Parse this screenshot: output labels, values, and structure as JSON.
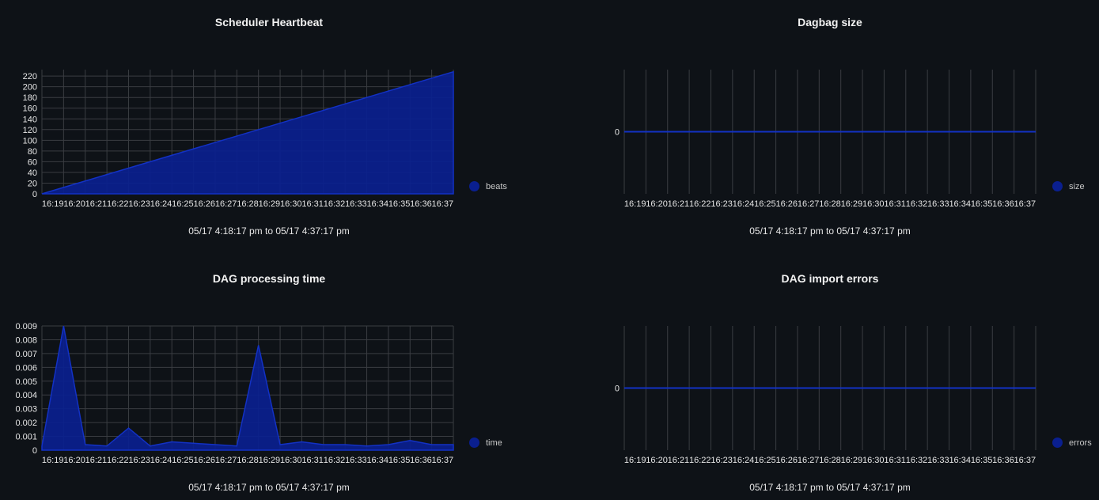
{
  "theme": {
    "background": "#0e1217",
    "series_color": "#0a1f8f",
    "series_line": "#1231c4",
    "grid": "#3a3d42",
    "text": "#e6e6e6"
  },
  "chart_data": [
    {
      "id": "scheduler-heartbeat",
      "type": "area",
      "title": "Scheduler Heartbeat",
      "subtitle": "05/17 4:18:17 pm to 05/17 4:37:17 pm",
      "legend": "beats",
      "legend_position": "right",
      "grid": "both",
      "x_ticks": [
        "16:19",
        "16:20",
        "16:21",
        "16:22",
        "16:23",
        "16:24",
        "16:25",
        "16:26",
        "16:27",
        "16:28",
        "16:29",
        "16:30",
        "16:31",
        "16:32",
        "16:33",
        "16:34",
        "16:35",
        "16:36",
        "16:37"
      ],
      "y_ticks": [
        0,
        20,
        40,
        60,
        80,
        100,
        120,
        140,
        160,
        180,
        200,
        220
      ],
      "ylim": [
        0,
        232
      ],
      "series": [
        {
          "name": "beats",
          "values": [
            0,
            12,
            24,
            36,
            48,
            60,
            72,
            84,
            96,
            108,
            120,
            132,
            144,
            156,
            168,
            180,
            192,
            204,
            216,
            228
          ]
        }
      ]
    },
    {
      "id": "dagbag-size",
      "type": "line",
      "title": "Dagbag size",
      "subtitle": "05/17 4:18:17 pm to 05/17 4:37:17 pm",
      "legend": "size",
      "legend_position": "right",
      "grid": "vertical",
      "x_ticks": [
        "16:19",
        "16:20",
        "16:21",
        "16:22",
        "16:23",
        "16:24",
        "16:25",
        "16:26",
        "16:27",
        "16:28",
        "16:29",
        "16:30",
        "16:31",
        "16:32",
        "16:33",
        "16:34",
        "16:35",
        "16:36",
        "16:37"
      ],
      "y_ticks": [
        0
      ],
      "ylim": [
        -1,
        1
      ],
      "series": [
        {
          "name": "size",
          "values": [
            0,
            0,
            0,
            0,
            0,
            0,
            0,
            0,
            0,
            0,
            0,
            0,
            0,
            0,
            0,
            0,
            0,
            0,
            0,
            0
          ]
        }
      ]
    },
    {
      "id": "dag-processing-time",
      "type": "area",
      "title": "DAG processing time",
      "subtitle": "05/17 4:18:17 pm to 05/17 4:37:17 pm",
      "legend": "time",
      "legend_position": "right",
      "grid": "both",
      "x_ticks": [
        "16:19",
        "16:20",
        "16:21",
        "16:22",
        "16:23",
        "16:24",
        "16:25",
        "16:26",
        "16:27",
        "16:28",
        "16:29",
        "16:30",
        "16:31",
        "16:32",
        "16:33",
        "16:34",
        "16:35",
        "16:36",
        "16:37"
      ],
      "y_ticks": [
        "0",
        "0.001",
        "0.002",
        "0.003",
        "0.004",
        "0.005",
        "0.006",
        "0.007",
        "0.008",
        "0.009"
      ],
      "ylim": [
        0,
        0.009
      ],
      "series": [
        {
          "name": "time",
          "values": [
            0.0003,
            0.009,
            0.0004,
            0.0003,
            0.0016,
            0.0003,
            0.0006,
            0.0005,
            0.0004,
            0.0003,
            0.0076,
            0.0004,
            0.0006,
            0.0004,
            0.0004,
            0.0003,
            0.0004,
            0.0007,
            0.0004,
            0.0004
          ]
        }
      ]
    },
    {
      "id": "dag-import-errors",
      "type": "line",
      "title": "DAG import errors",
      "subtitle": "05/17 4:18:17 pm to 05/17 4:37:17 pm",
      "legend": "errors",
      "legend_position": "right",
      "grid": "vertical",
      "x_ticks": [
        "16:19",
        "16:20",
        "16:21",
        "16:22",
        "16:23",
        "16:24",
        "16:25",
        "16:26",
        "16:27",
        "16:28",
        "16:29",
        "16:30",
        "16:31",
        "16:32",
        "16:33",
        "16:34",
        "16:35",
        "16:36",
        "16:37"
      ],
      "y_ticks": [
        0
      ],
      "ylim": [
        -1,
        1
      ],
      "series": [
        {
          "name": "errors",
          "values": [
            0,
            0,
            0,
            0,
            0,
            0,
            0,
            0,
            0,
            0,
            0,
            0,
            0,
            0,
            0,
            0,
            0,
            0,
            0,
            0
          ]
        }
      ]
    }
  ]
}
